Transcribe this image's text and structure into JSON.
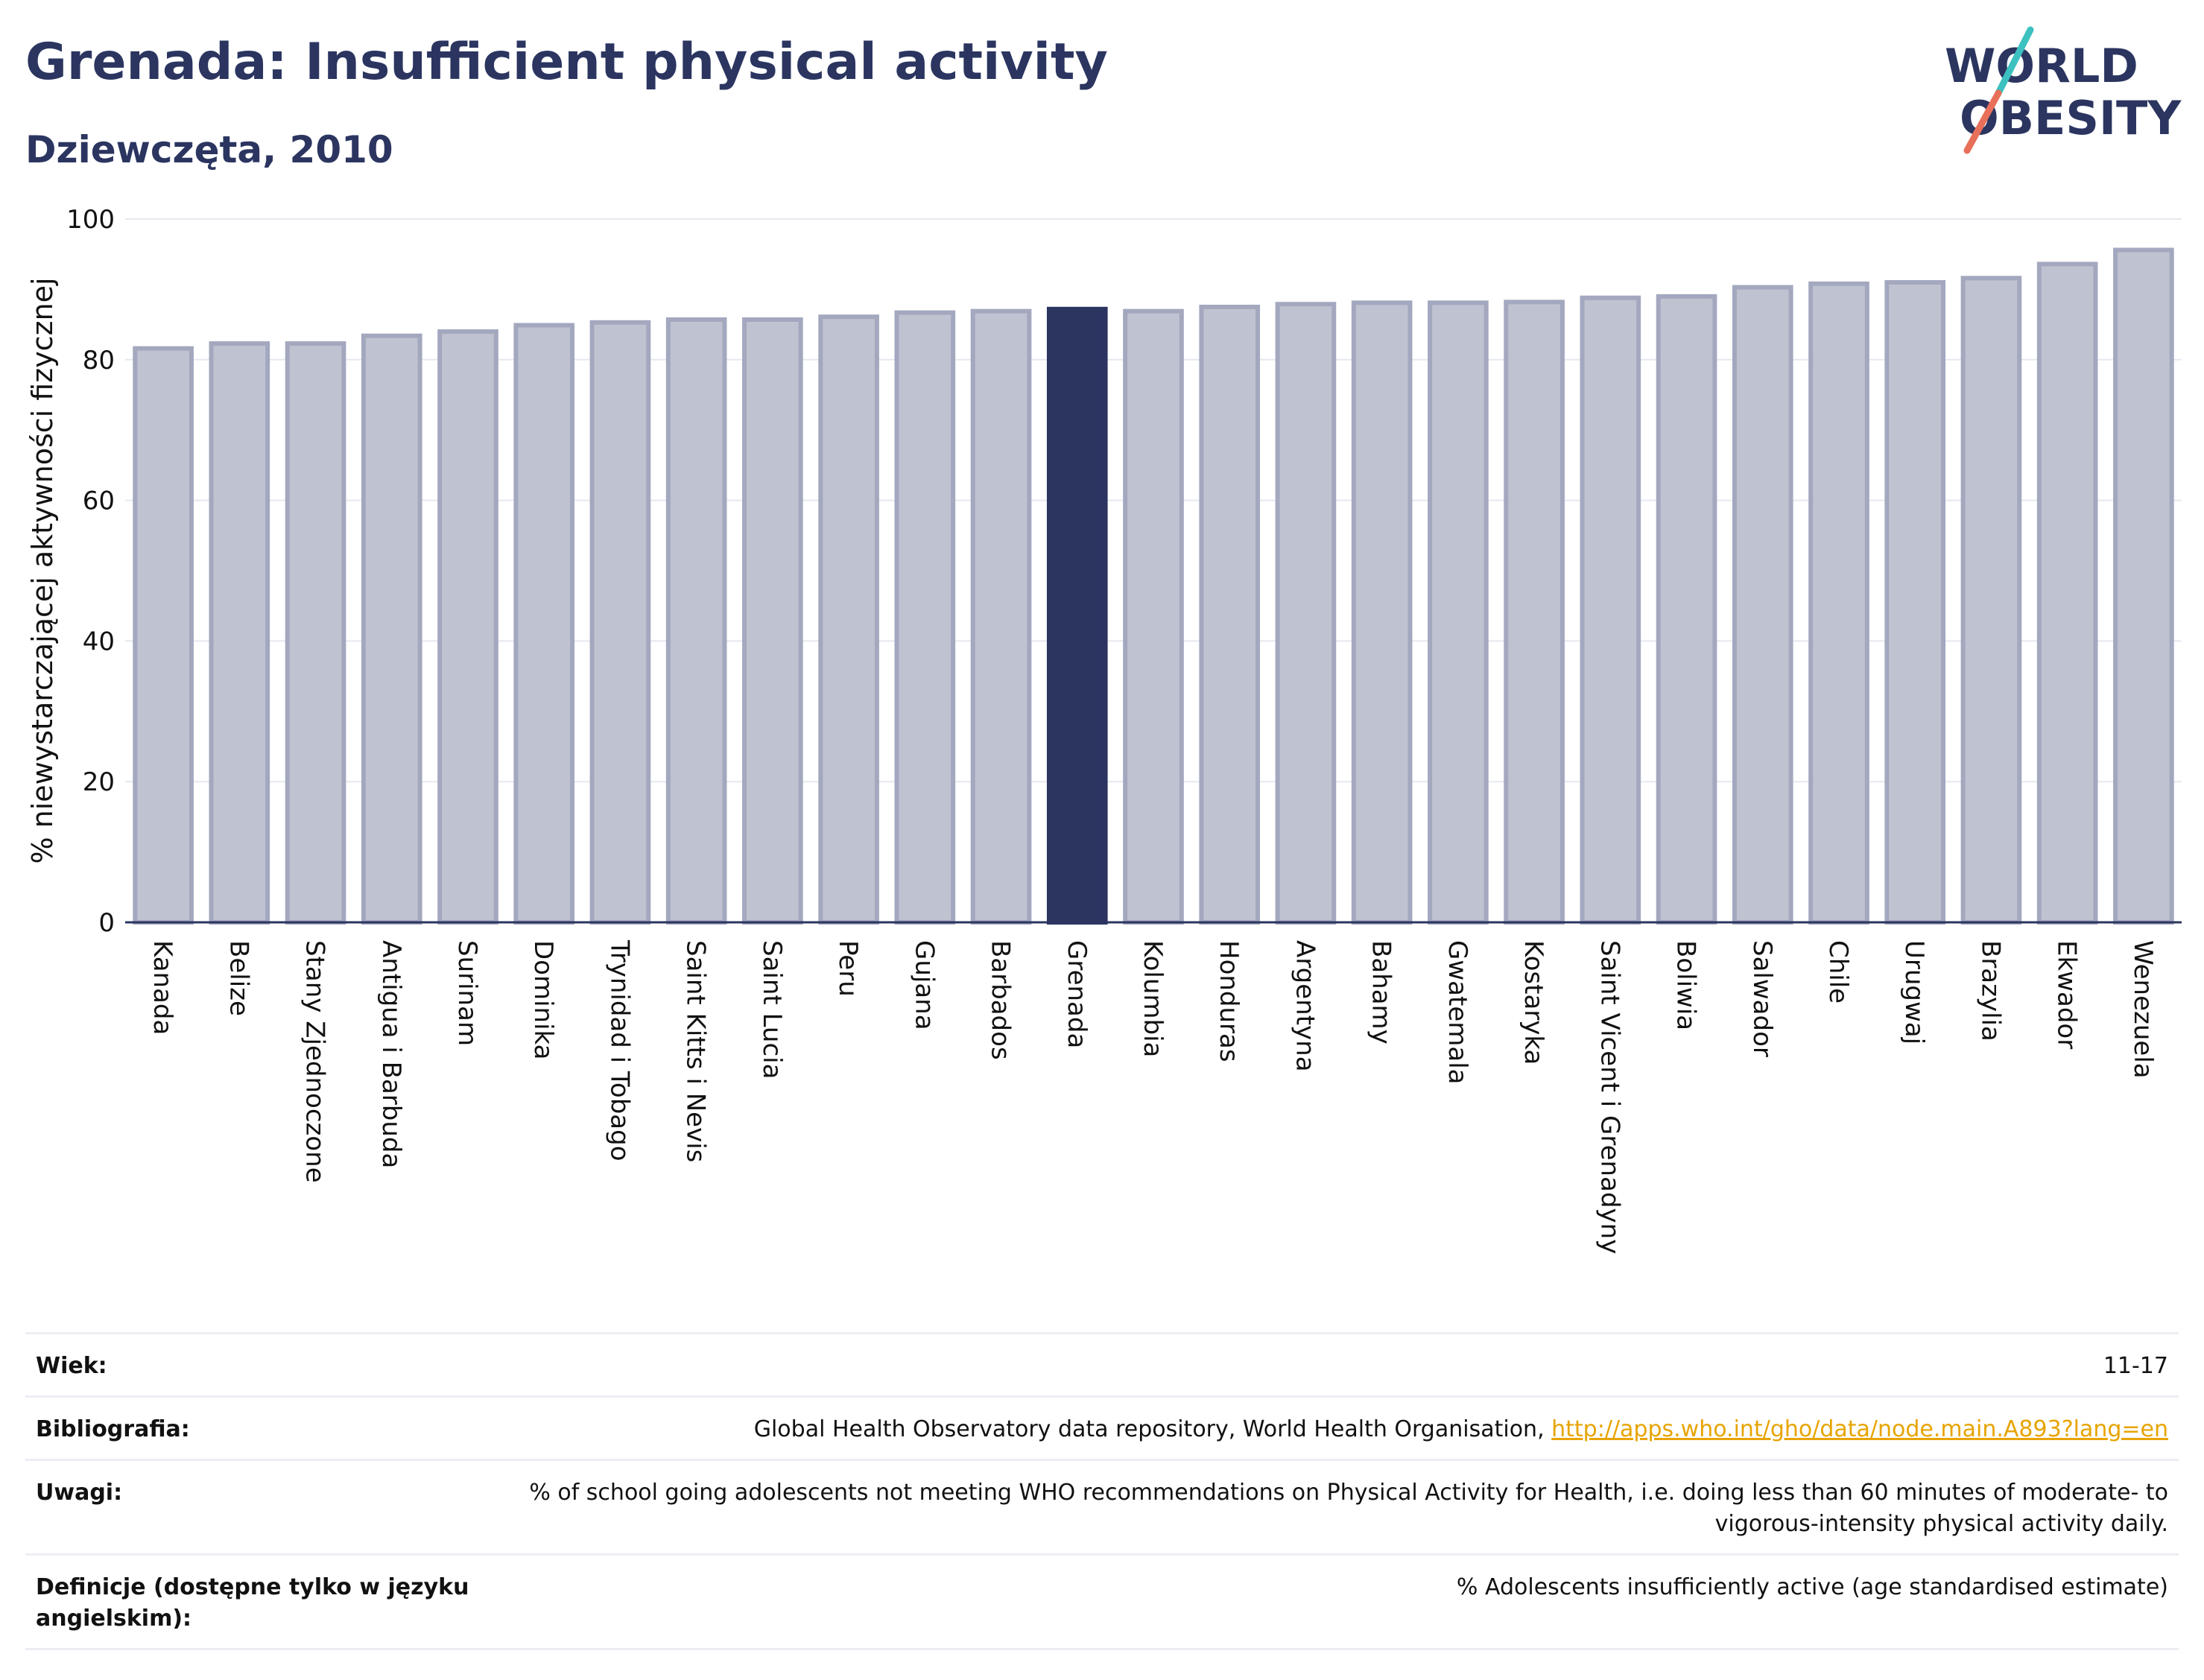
{
  "header": {
    "title": "Grenada: Insufficient physical activity",
    "subtitle": "Dziewczęta, 2010"
  },
  "logo": {
    "line1": "WORLD",
    "line2": "OBESITY",
    "accent_colors": [
      "#3cc0c0",
      "#e8705a"
    ]
  },
  "colors": {
    "highlight": "#2b3560",
    "bar": "#bfc2d0",
    "bar_border": "#a3a8bf",
    "axis": "#2b3560"
  },
  "chart_data": {
    "type": "bar",
    "ylabel": "% niewystarczającej aktywności fizycznej",
    "ylim": [
      0,
      100
    ],
    "yticks": [
      0,
      20,
      40,
      60,
      80,
      100
    ],
    "grid": true,
    "highlight": "Grenada",
    "categories": [
      "Kanada",
      "Belize",
      "Stany Zjednoczone",
      "Antigua i Barbuda",
      "Surinam",
      "Dominika",
      "Trynidad i Tobago",
      "Saint Kitts i Nevis",
      "Saint Lucia",
      "Peru",
      "Gujana",
      "Barbados",
      "Grenada",
      "Kolumbia",
      "Honduras",
      "Argentyna",
      "Bahamy",
      "Gwatemala",
      "Kostaryka",
      "Saint Vicent i Grenadyny",
      "Boliwia",
      "Salwador",
      "Chile",
      "Urugwaj",
      "Brazylia",
      "Ekwador",
      "Wenezuela"
    ],
    "values": [
      81.6,
      82.3,
      82.3,
      83.4,
      84.0,
      84.9,
      85.3,
      85.7,
      85.7,
      86.1,
      86.7,
      86.9,
      87.2,
      86.9,
      87.5,
      87.9,
      88.1,
      88.1,
      88.2,
      88.8,
      89.0,
      90.3,
      90.8,
      91.0,
      91.6,
      93.6,
      95.6
    ]
  },
  "info": {
    "rows": [
      {
        "label": "Wiek:",
        "value": "11-17"
      },
      {
        "label": "Bibliografia:",
        "value": "Global Health Observatory data repository, World Health Organisation, ",
        "link": "http://apps.who.int/gho/data/node.main.A893?lang=en"
      },
      {
        "label": "Uwagi:",
        "value": "% of school going adolescents not meeting WHO recommendations on Physical Activity for Health, i.e. doing less than 60 minutes of moderate- to vigorous-intensity physical activity daily."
      },
      {
        "label": "Definicje (dostępne tylko w języku angielskim):",
        "value": "% Adolescents insufficiently active (age standardised estimate)"
      }
    ]
  }
}
